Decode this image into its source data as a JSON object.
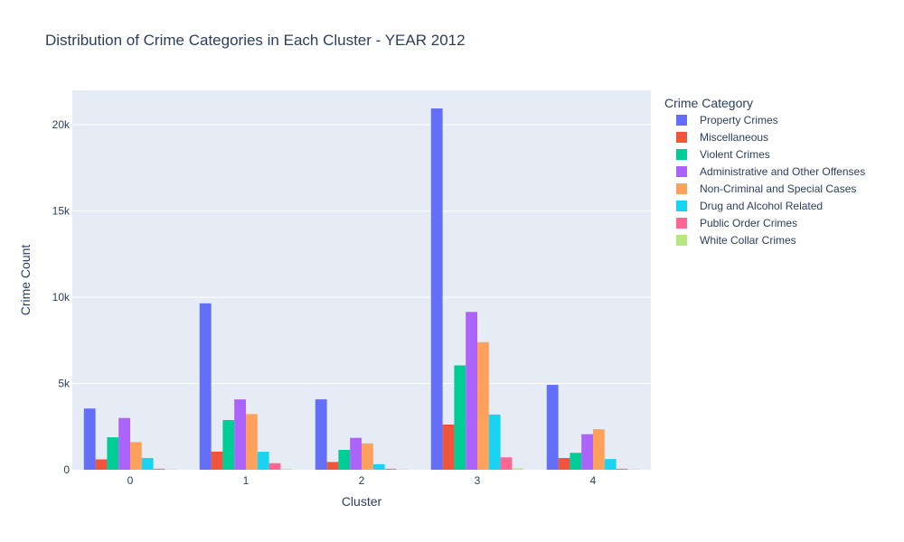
{
  "chart_data": {
    "type": "bar",
    "title": "Distribution of Crime Categories in Each Cluster - YEAR 2012",
    "xlabel": "Cluster",
    "ylabel": "Crime Count",
    "categories": [
      "0",
      "1",
      "2",
      "3",
      "4"
    ],
    "ylim": [
      0,
      22000
    ],
    "yticks": [
      0,
      5000,
      10000,
      15000,
      20000
    ],
    "ytick_labels": [
      "0",
      "5k",
      "10k",
      "15k",
      "20k"
    ],
    "grid": true,
    "legend_title": "Crime Category",
    "legend_position": "right",
    "series": [
      {
        "name": "Property Crimes",
        "color": "#636efa",
        "values": [
          3550,
          9650,
          4080,
          20950,
          4920
        ]
      },
      {
        "name": "Miscellaneous",
        "color": "#ef553b",
        "values": [
          600,
          1050,
          450,
          2620,
          680
        ]
      },
      {
        "name": "Violent Crimes",
        "color": "#00cc96",
        "values": [
          1880,
          2880,
          1150,
          6050,
          980
        ]
      },
      {
        "name": "Administrative and Other Offenses",
        "color": "#ab63fa",
        "values": [
          3000,
          4080,
          1850,
          9150,
          2060
        ]
      },
      {
        "name": "Non-Criminal and Special Cases",
        "color": "#ffa15a",
        "values": [
          1600,
          3230,
          1530,
          7400,
          2350
        ]
      },
      {
        "name": "Drug and Alcohol Related",
        "color": "#19d3f3",
        "values": [
          680,
          1040,
          320,
          3200,
          620
        ]
      },
      {
        "name": "Public Order Crimes",
        "color": "#ff6692",
        "values": [
          60,
          380,
          60,
          720,
          60
        ]
      },
      {
        "name": "White Collar Crimes",
        "color": "#b6e880",
        "values": [
          20,
          50,
          20,
          80,
          20
        ]
      }
    ]
  }
}
